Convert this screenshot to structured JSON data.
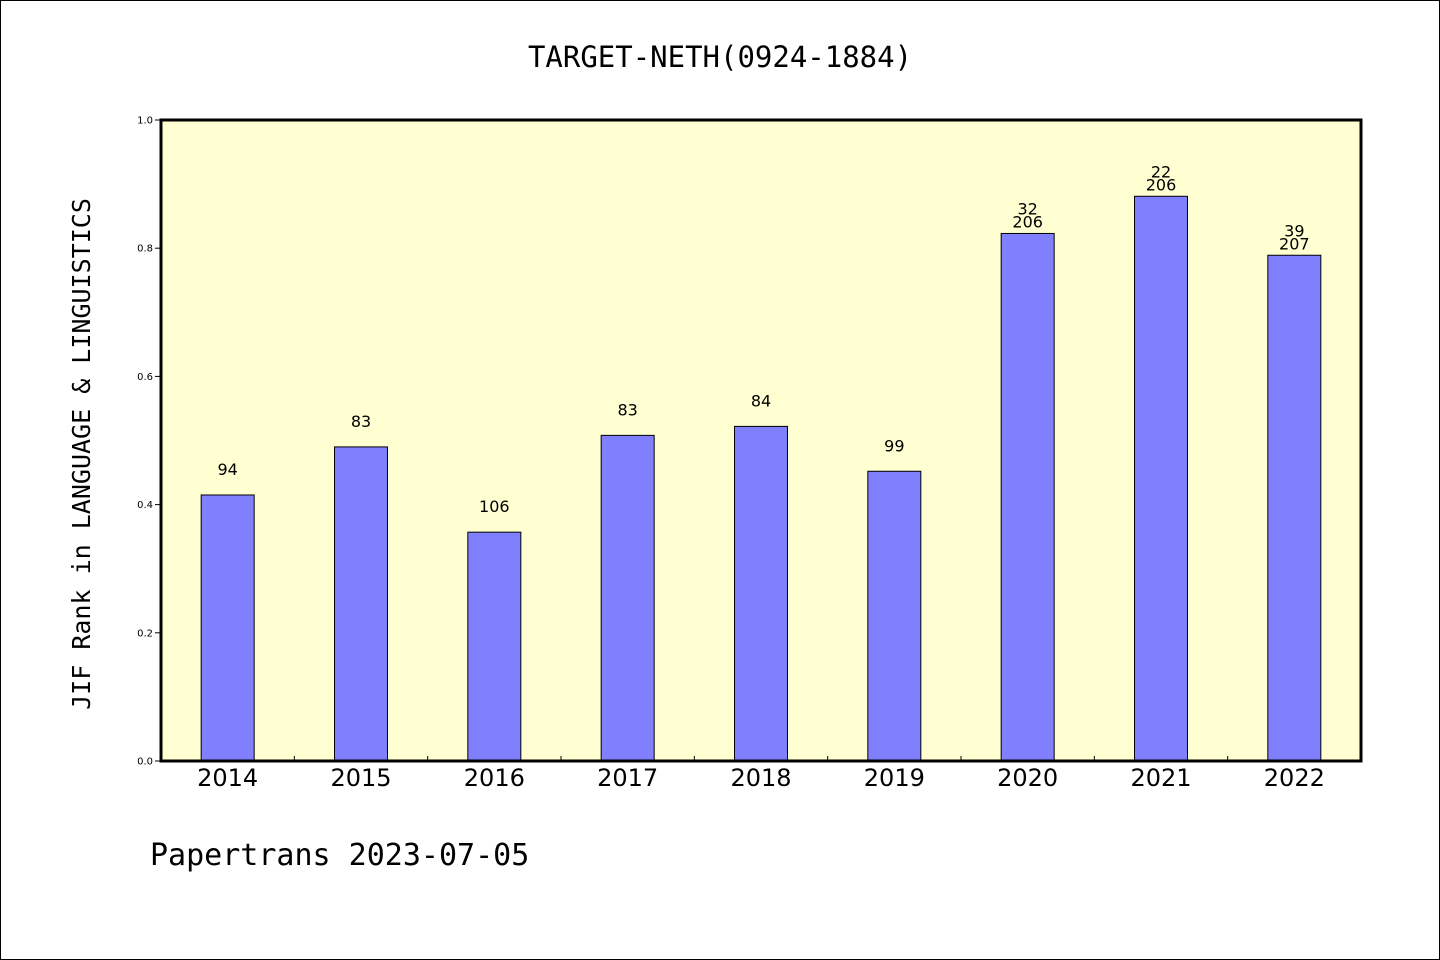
{
  "chart_data": {
    "type": "bar",
    "title": "TARGET-NETH(0924-1884)",
    "xlabel": "",
    "ylabel": "JIF Rank in LANGUAGE & LINGUISTICS",
    "ylim": [
      0,
      1.0
    ],
    "yticks": [
      "0.0",
      "0.2",
      "0.4",
      "0.6",
      "0.8",
      "1.0"
    ],
    "categories": [
      "2014",
      "2015",
      "2016",
      "2017",
      "2018",
      "2019",
      "2020",
      "2021",
      "2022"
    ],
    "values": [
      0.415,
      0.49,
      0.357,
      0.508,
      0.522,
      0.452,
      0.823,
      0.881,
      0.789
    ],
    "rank_labels": [
      [
        "94"
      ],
      [
        "83"
      ],
      [
        "106"
      ],
      [
        "83"
      ],
      [
        "84"
      ],
      [
        "99"
      ],
      [
        "32",
        "206"
      ],
      [
        "22",
        "206"
      ],
      [
        "39",
        "207"
      ]
    ],
    "grid": false,
    "colors": {
      "bar": "#8080ff",
      "plot_background": "#ffffd2",
      "frame": "#000000"
    }
  },
  "footer": "Papertrans 2023-07-05"
}
